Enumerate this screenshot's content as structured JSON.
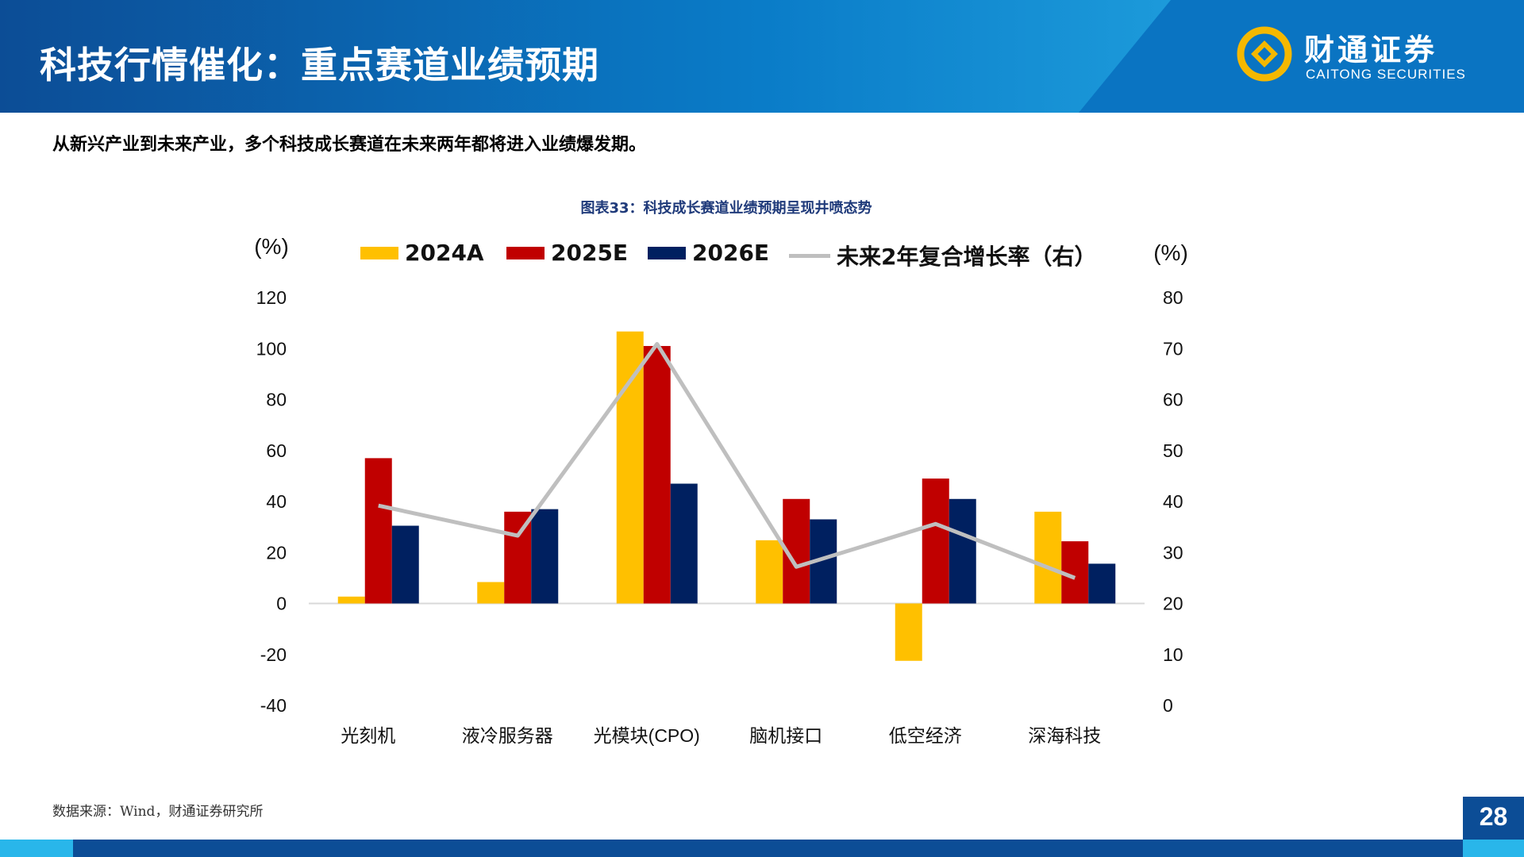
{
  "header": {
    "title": "科技行情催化：重点赛道业绩预期",
    "logo_cn": "财通证券",
    "logo_en": "CAITONG SECURITIES"
  },
  "subtitle": "从新兴产业到未来产业，多个科技成长赛道在未来两年都将进入业绩爆发期。",
  "footer": {
    "source": "数据来源：Wind，财通证券研究所",
    "page": "28"
  },
  "colors": {
    "2024A": "#ffc000",
    "2025E": "#c00000",
    "2026E": "#002060",
    "line": "#bfbfbf",
    "header": "#0c4d96"
  },
  "chart_data": {
    "type": "bar",
    "title": "图表33：科技成长赛道业绩预期呈现井喷态势",
    "ylabel": "(%)",
    "y2label": "(%)",
    "categories": [
      "光刻机",
      "液冷服务器",
      "光模块(CPO)",
      "脑机接口",
      "低空经济",
      "深海科技"
    ],
    "series": [
      {
        "name": "2024A",
        "axis": "left",
        "values": [
          2.7,
          8.4,
          106.7,
          24.8,
          -22.5,
          36
        ]
      },
      {
        "name": "2025E",
        "axis": "left",
        "values": [
          57,
          36,
          101,
          41,
          49,
          24.4
        ]
      },
      {
        "name": "2026E",
        "axis": "left",
        "values": [
          30.5,
          37,
          47,
          33,
          41,
          15.6
        ]
      },
      {
        "name": "未来2年复合增长率（右）",
        "axis": "right",
        "type": "line",
        "values": [
          39.2,
          33.3,
          70.9,
          27.2,
          35.6,
          25
        ]
      }
    ],
    "ylim": [
      -40,
      120
    ],
    "yticks": [
      "120",
      "100",
      "80",
      "60",
      "40",
      "20",
      "0",
      "-20",
      "-40"
    ],
    "y2lim": [
      0,
      80
    ],
    "y2ticks": [
      "80",
      "70",
      "60",
      "50",
      "40",
      "30",
      "20",
      "10",
      "0"
    ],
    "grid": false,
    "legend": "top"
  }
}
